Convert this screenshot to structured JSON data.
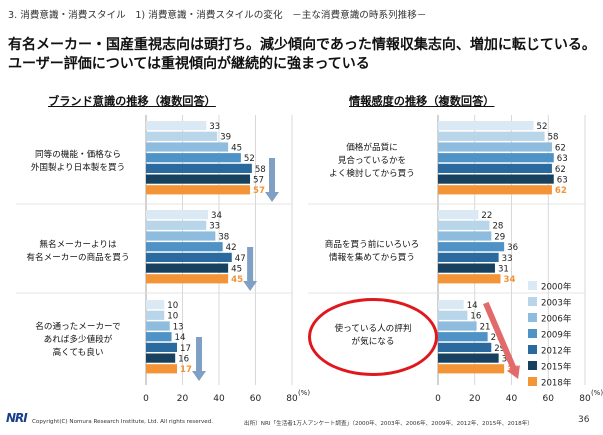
{
  "header": {
    "breadcrumb": "3. 消費意識・消費スタイル　1) 消費意識・消費スタイルの変化　－主な消費意識の時系列推移－",
    "headline": "有名メーカー・国産重視志向は頭打ち。減少傾向であった情報収集志向、増加に転じている。ユーザー評価については重視傾向が継続的に強まっている"
  },
  "oval_label": "使っている人の評判が気になる",
  "colors": {
    "series": [
      "#dbe9f4",
      "#b8d5ea",
      "#8dbcde",
      "#4f93c6",
      "#2b6a9e",
      "#17415f",
      "#f39437"
    ],
    "arrow_blue": "#7f9fc4",
    "arrow_red": "#e26a6a",
    "oval": "#e0171c",
    "highlight_text": "#f39437"
  },
  "chart_data": [
    {
      "type": "bar",
      "title": "ブランド意識の推移（複数回答）",
      "orientation": "horizontal",
      "categories": [
        "同等の機能・価格なら外国製より日本製を買う",
        "無名メーカーよりは有名メーカーの商品を買う",
        "名の通ったメーカーであれば多少値段が高くても良い"
      ],
      "category_lines": [
        [
          "同等の機能・価格なら",
          "外国製より日本製を買う"
        ],
        [
          "無名メーカーよりは",
          "有名メーカーの商品を買う"
        ],
        [
          "名の通ったメーカーで",
          "あれば多少値段が",
          "高くても良い"
        ]
      ],
      "series": [
        {
          "name": "2000年",
          "values": [
            33,
            34,
            10
          ]
        },
        {
          "name": "2003年",
          "values": [
            39,
            33,
            10
          ]
        },
        {
          "name": "2006年",
          "values": [
            45,
            38,
            13
          ]
        },
        {
          "name": "2009年",
          "values": [
            52,
            42,
            14
          ]
        },
        {
          "name": "2012年",
          "values": [
            58,
            47,
            17
          ]
        },
        {
          "name": "2015年",
          "values": [
            57,
            45,
            16
          ]
        },
        {
          "name": "2018年",
          "values": [
            57,
            45,
            17
          ]
        }
      ],
      "xlim": [
        0,
        80
      ],
      "xticks": [
        0,
        20,
        40,
        60,
        80
      ],
      "unit": "(%)",
      "trend_arrows": [
        "blue-down",
        "blue-down",
        "blue-down"
      ]
    },
    {
      "type": "bar",
      "title": "情報感度の推移（複数回答）",
      "orientation": "horizontal",
      "categories": [
        "価格が品質に見合っているかをよく検討してから買う",
        "商品を買う前にいろいろ情報を集めてから買う",
        "使っている人の評判が気になる"
      ],
      "category_lines": [
        [
          "価格が品質に",
          "見合っているかを",
          "よく検討してから買う"
        ],
        [
          "商品を買う前にいろいろ",
          "情報を集めてから買う"
        ],
        [
          "使っている人の評判",
          "が気になる"
        ]
      ],
      "series": [
        {
          "name": "2000年",
          "values": [
            52,
            22,
            14
          ]
        },
        {
          "name": "2003年",
          "values": [
            58,
            28,
            16
          ]
        },
        {
          "name": "2006年",
          "values": [
            62,
            29,
            21
          ]
        },
        {
          "name": "2009年",
          "values": [
            63,
            36,
            27
          ]
        },
        {
          "name": "2012年",
          "values": [
            62,
            33,
            29
          ]
        },
        {
          "name": "2015年",
          "values": [
            63,
            31,
            33
          ]
        },
        {
          "name": "2018年",
          "values": [
            62,
            34,
            36
          ]
        }
      ],
      "xlim": [
        0,
        80
      ],
      "xticks": [
        0,
        20,
        40,
        60,
        80
      ],
      "unit": "(%)",
      "legend_placement": "bottom-right",
      "trend_arrows": [
        "none",
        "none",
        "red-up"
      ]
    }
  ],
  "footer": {
    "logo": "NRI",
    "copyright": "Copyright(C) Nomura Research Institute, Ltd. All rights reserved.",
    "source": "出所）NRI「生活者1万人アンケート調査」（2000年、2003年、2006年、2009年、2012年、2015年、2018年）",
    "page": "36"
  }
}
